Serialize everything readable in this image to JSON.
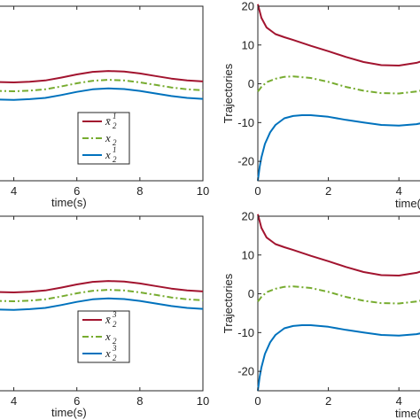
{
  "chart_data": [
    {
      "id": "tl",
      "type": "line",
      "xlabel": "time(s)",
      "ylabel": "",
      "xlim": [
        3,
        10
      ],
      "ylim": [
        -30,
        25
      ],
      "xticks": [
        4,
        6,
        8,
        10
      ],
      "yticks": [],
      "grid": false,
      "legend_placement": "bottom-center",
      "series": [
        {
          "name": "x̄",
          "sup": "1",
          "sub": "2",
          "color": "#a2142f",
          "dash": "solid",
          "x": [
            3,
            3.5,
            4,
            4.5,
            5,
            5.5,
            6,
            6.5,
            7,
            7.5,
            8,
            8.5,
            9,
            9.5,
            10
          ],
          "y": [
            1.2,
            1.1,
            1.0,
            1.2,
            1.6,
            2.5,
            3.5,
            4.3,
            4.6,
            4.4,
            3.8,
            3.0,
            2.2,
            1.6,
            1.3
          ]
        },
        {
          "name": "x",
          "sup": "",
          "sub": "2",
          "color": "#77ac30",
          "dash": "dashdot",
          "x": [
            3,
            3.5,
            4,
            4.5,
            5,
            5.5,
            6,
            6.5,
            7,
            7.5,
            8,
            8.5,
            9,
            9.5,
            10
          ],
          "y": [
            -1.6,
            -1.7,
            -1.8,
            -1.6,
            -1.2,
            -0.3,
            0.7,
            1.5,
            1.8,
            1.6,
            1.0,
            0.2,
            -0.6,
            -1.2,
            -1.5
          ]
        },
        {
          "name": "x",
          "sup": "1",
          "sub": "2",
          "color": "#0072bd",
          "dash": "solid",
          "x": [
            3,
            3.5,
            4,
            4.5,
            5,
            5.5,
            6,
            6.5,
            7,
            7.5,
            8,
            8.5,
            9,
            9.5,
            10
          ],
          "y": [
            -4.3,
            -4.4,
            -4.5,
            -4.3,
            -3.9,
            -3.0,
            -2.0,
            -1.2,
            -0.9,
            -1.1,
            -1.7,
            -2.5,
            -3.3,
            -3.9,
            -4.2
          ]
        }
      ]
    },
    {
      "id": "tr",
      "type": "line",
      "xlabel": "time(s)",
      "ylabel": "Trajectories",
      "xlim": [
        0,
        5
      ],
      "ylim": [
        -25,
        20
      ],
      "xticks": [
        0,
        2,
        4
      ],
      "yticks": [
        20,
        10,
        0,
        -10,
        -20
      ],
      "grid": false,
      "series": [
        {
          "color": "#a2142f",
          "dash": "solid",
          "x": [
            0,
            0.1,
            0.25,
            0.5,
            0.75,
            1,
            1.5,
            2,
            2.5,
            3,
            3.5,
            4,
            4.5,
            5
          ],
          "y": [
            20.5,
            17.0,
            14.5,
            12.8,
            12.0,
            11.3,
            9.8,
            8.4,
            6.9,
            5.6,
            4.8,
            4.7,
            5.4,
            6.8
          ]
        },
        {
          "color": "#77ac30",
          "dash": "dashdot",
          "x": [
            0,
            0.1,
            0.25,
            0.5,
            0.75,
            1,
            1.5,
            2,
            2.5,
            3,
            3.5,
            4,
            4.5,
            5
          ],
          "y": [
            -2.0,
            -0.8,
            0.4,
            1.3,
            1.8,
            1.9,
            1.5,
            0.5,
            -0.8,
            -1.8,
            -2.4,
            -2.5,
            -2.0,
            -1.0
          ]
        },
        {
          "color": "#0072bd",
          "dash": "solid",
          "x": [
            0,
            0.05,
            0.1,
            0.2,
            0.35,
            0.5,
            0.75,
            1,
            1.25,
            1.5,
            2,
            2.5,
            3,
            3.5,
            4,
            4.5,
            5
          ],
          "y": [
            -25,
            -21.5,
            -19.0,
            -15.5,
            -12.5,
            -10.6,
            -8.9,
            -8.3,
            -8.1,
            -8.1,
            -8.5,
            -9.3,
            -10.0,
            -10.6,
            -10.8,
            -10.4,
            -9.5
          ]
        }
      ]
    },
    {
      "id": "bl",
      "type": "line",
      "xlabel": "time(s)",
      "ylabel": "",
      "xlim": [
        3,
        10
      ],
      "ylim": [
        -30,
        25
      ],
      "xticks": [
        4,
        6,
        8,
        10
      ],
      "yticks": [],
      "grid": false,
      "legend_placement": "bottom-center",
      "series": [
        {
          "name": "x̄",
          "sup": "3",
          "sub": "2",
          "color": "#a2142f",
          "dash": "solid",
          "x": [
            3,
            3.5,
            4,
            4.5,
            5,
            5.5,
            6,
            6.5,
            7,
            7.5,
            8,
            8.5,
            9,
            9.5,
            10
          ],
          "y": [
            1.2,
            1.1,
            1.0,
            1.2,
            1.6,
            2.5,
            3.5,
            4.3,
            4.6,
            4.4,
            3.8,
            3.0,
            2.2,
            1.6,
            1.3
          ]
        },
        {
          "name": "x",
          "sup": "",
          "sub": "2",
          "color": "#77ac30",
          "dash": "dashdot",
          "x": [
            3,
            3.5,
            4,
            4.5,
            5,
            5.5,
            6,
            6.5,
            7,
            7.5,
            8,
            8.5,
            9,
            9.5,
            10
          ],
          "y": [
            -1.6,
            -1.7,
            -1.8,
            -1.6,
            -1.2,
            -0.3,
            0.7,
            1.5,
            1.8,
            1.6,
            1.0,
            0.2,
            -0.6,
            -1.2,
            -1.5
          ]
        },
        {
          "name": "x",
          "sup": "3",
          "sub": "2",
          "color": "#0072bd",
          "dash": "solid",
          "x": [
            3,
            3.5,
            4,
            4.5,
            5,
            5.5,
            6,
            6.5,
            7,
            7.5,
            8,
            8.5,
            9,
            9.5,
            10
          ],
          "y": [
            -4.3,
            -4.4,
            -4.5,
            -4.3,
            -3.9,
            -3.0,
            -2.0,
            -1.2,
            -0.9,
            -1.1,
            -1.7,
            -2.5,
            -3.3,
            -3.9,
            -4.2
          ]
        }
      ]
    },
    {
      "id": "br",
      "type": "line",
      "xlabel": "time(s)",
      "ylabel": "Trajectories",
      "xlim": [
        0,
        5
      ],
      "ylim": [
        -25,
        20
      ],
      "xticks": [
        0,
        2,
        4
      ],
      "yticks": [
        20,
        10,
        0,
        -10,
        -20
      ],
      "grid": false,
      "series": [
        {
          "color": "#a2142f",
          "dash": "solid",
          "x": [
            0,
            0.1,
            0.25,
            0.5,
            0.75,
            1,
            1.5,
            2,
            2.5,
            3,
            3.5,
            4,
            4.5,
            5
          ],
          "y": [
            20.5,
            17.0,
            14.5,
            12.8,
            12.0,
            11.3,
            9.8,
            8.4,
            6.9,
            5.6,
            4.8,
            4.7,
            5.4,
            6.8
          ]
        },
        {
          "color": "#77ac30",
          "dash": "dashdot",
          "x": [
            0,
            0.1,
            0.25,
            0.5,
            0.75,
            1,
            1.5,
            2,
            2.5,
            3,
            3.5,
            4,
            4.5,
            5
          ],
          "y": [
            -2.0,
            -0.8,
            0.4,
            1.3,
            1.8,
            1.9,
            1.5,
            0.5,
            -0.8,
            -1.8,
            -2.4,
            -2.5,
            -2.0,
            -1.0
          ]
        },
        {
          "color": "#0072bd",
          "dash": "solid",
          "x": [
            0,
            0.05,
            0.1,
            0.2,
            0.35,
            0.5,
            0.75,
            1,
            1.25,
            1.5,
            2,
            2.5,
            3,
            3.5,
            4,
            4.5,
            5
          ],
          "y": [
            -25,
            -21.5,
            -19.0,
            -15.5,
            -12.5,
            -10.6,
            -8.9,
            -8.3,
            -8.1,
            -8.1,
            -8.5,
            -9.3,
            -10.0,
            -10.6,
            -10.8,
            -10.4,
            -9.5
          ]
        }
      ]
    }
  ]
}
